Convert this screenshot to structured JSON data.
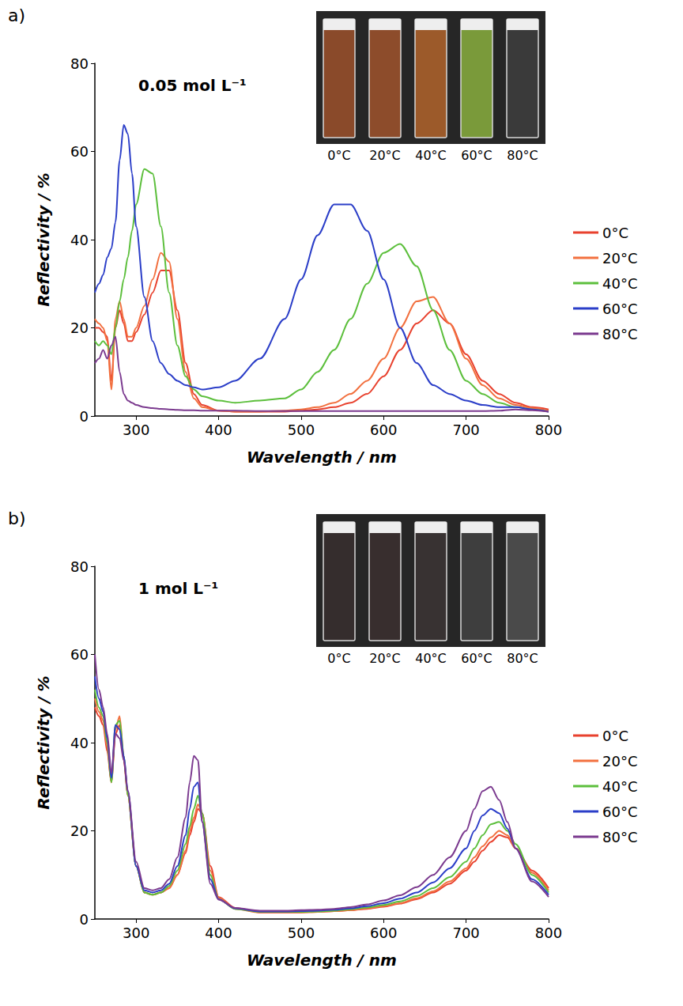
{
  "chart_data": [
    {
      "type": "line",
      "panel_label": "a)",
      "annotation": "0.05 mol L⁻¹",
      "inset_labels": [
        "0°C",
        "20°C",
        "40°C",
        "60°C",
        "80°C"
      ],
      "x_label": "Wavelength / nm",
      "y_label": "Reflectivity / %",
      "x": [
        250,
        255,
        260,
        265,
        270,
        275,
        280,
        285,
        290,
        295,
        300,
        310,
        320,
        330,
        340,
        350,
        360,
        370,
        380,
        400,
        420,
        450,
        480,
        500,
        520,
        540,
        560,
        580,
        600,
        620,
        640,
        660,
        680,
        700,
        720,
        740,
        760,
        780,
        800
      ],
      "series": [
        {
          "name": "0°C",
          "color": "#e8412e",
          "values": [
            20,
            20,
            19,
            18,
            8,
            20,
            24,
            21,
            17,
            17,
            19,
            23,
            28,
            33,
            33,
            24,
            12,
            5,
            2.5,
            1.2,
            1,
            1,
            1,
            1.2,
            1.5,
            2,
            3,
            5,
            9,
            15,
            21,
            24,
            21,
            14,
            8,
            5,
            3,
            2,
            1.5
          ]
        },
        {
          "name": "20°C",
          "color": "#f2703f",
          "values": [
            22,
            21,
            20,
            17,
            6,
            22,
            26,
            22,
            18,
            18,
            20,
            25,
            31,
            37,
            35,
            22,
            10,
            4,
            2,
            1.2,
            1,
            1,
            1.2,
            1.5,
            2,
            3,
            5,
            8,
            13,
            20,
            26,
            27,
            21,
            13,
            7,
            4,
            2.5,
            1.8,
            1.2
          ]
        },
        {
          "name": "40°C",
          "color": "#5cbf3c",
          "values": [
            17,
            16,
            17,
            16,
            14,
            20,
            26,
            31,
            36,
            42,
            48,
            56,
            55,
            43,
            28,
            16,
            9,
            6,
            4.5,
            3.5,
            3,
            3.5,
            4,
            6,
            10,
            15,
            22,
            30,
            37,
            39,
            34,
            24,
            15,
            8,
            5,
            3,
            2,
            1.5,
            1
          ]
        },
        {
          "name": "60°C",
          "color": "#2b3ec8",
          "values": [
            28,
            30,
            32,
            36,
            38,
            44,
            58,
            66,
            64,
            55,
            43,
            27,
            17,
            12,
            9.5,
            8,
            7,
            6.5,
            6,
            6.5,
            8,
            13,
            22,
            31,
            41,
            48,
            48,
            42,
            31,
            20,
            12,
            7,
            5,
            3.5,
            2.5,
            2,
            2,
            1.5,
            1
          ]
        },
        {
          "name": "80°C",
          "color": "#7b3a8f",
          "values": [
            12,
            13,
            15,
            13,
            16,
            18,
            10,
            5,
            3.5,
            3,
            2.5,
            2,
            1.8,
            1.6,
            1.5,
            1.4,
            1.3,
            1.3,
            1.2,
            1.2,
            1.2,
            1.1,
            1.1,
            1.1,
            1.1,
            1.1,
            1.1,
            1.1,
            1.1,
            1.1,
            1.1,
            1.1,
            1.1,
            1.1,
            1.1,
            1.2,
            1.5,
            1.3,
            1
          ]
        }
      ],
      "xlim": [
        250,
        800
      ],
      "xticks": [
        300,
        400,
        500,
        600,
        700,
        800
      ],
      "ylim": [
        0,
        80
      ],
      "yticks": [
        0,
        20,
        40,
        60,
        80
      ],
      "legend": "right",
      "grid": false
    },
    {
      "type": "line",
      "panel_label": "b)",
      "annotation": "1 mol L⁻¹",
      "inset_labels": [
        "0°C",
        "20°C",
        "40°C",
        "60°C",
        "80°C"
      ],
      "x_label": "Wavelength / nm",
      "y_label": "Reflectivity / %",
      "x": [
        250,
        255,
        260,
        265,
        270,
        275,
        280,
        285,
        290,
        300,
        310,
        320,
        330,
        340,
        350,
        360,
        365,
        370,
        375,
        380,
        390,
        400,
        420,
        450,
        480,
        500,
        520,
        540,
        560,
        580,
        600,
        620,
        640,
        660,
        680,
        700,
        710,
        720,
        730,
        740,
        750,
        760,
        780,
        800
      ],
      "series": [
        {
          "name": "0°C",
          "color": "#e8412e",
          "values": [
            48,
            46,
            44,
            38,
            31,
            42,
            44,
            36,
            28,
            12,
            6,
            5.5,
            6,
            7,
            10,
            15,
            19,
            22,
            25,
            24,
            12,
            5,
            2.5,
            1.5,
            1.5,
            1.5,
            1.6,
            1.8,
            2,
            2.3,
            2.8,
            3.5,
            4.5,
            6,
            8,
            11,
            13,
            15.5,
            17.5,
            19,
            18.5,
            16,
            11,
            7
          ]
        },
        {
          "name": "20°C",
          "color": "#f2703f",
          "values": [
            50,
            47,
            45,
            39,
            31,
            43,
            46,
            37,
            28,
            12,
            6,
            5.5,
            6,
            7,
            10,
            15.5,
            20,
            23,
            26,
            24,
            11,
            4.8,
            2.3,
            1.5,
            1.5,
            1.5,
            1.6,
            1.8,
            2,
            2.4,
            2.9,
            3.6,
            4.7,
            6.3,
            8.5,
            11.5,
            14,
            16.5,
            18.5,
            20,
            19,
            16,
            10.5,
            6.5
          ]
        },
        {
          "name": "40°C",
          "color": "#5cbf3c",
          "values": [
            52,
            48,
            46,
            40,
            31,
            44,
            45,
            37,
            28,
            12,
            6,
            5.5,
            6,
            7.5,
            11,
            17,
            21,
            25,
            28,
            24,
            10,
            4.5,
            2.3,
            1.6,
            1.6,
            1.6,
            1.7,
            1.9,
            2.2,
            2.6,
            3.2,
            4,
            5.2,
            7,
            9.5,
            13,
            16,
            19,
            21.5,
            22,
            20,
            17,
            10,
            6
          ]
        },
        {
          "name": "60°C",
          "color": "#2b3ec8",
          "values": [
            55,
            50,
            47,
            41,
            32,
            44,
            43,
            37,
            29,
            12,
            6.5,
            6,
            6.5,
            8,
            12,
            19,
            25,
            30,
            31,
            22,
            9,
            4.5,
            2.4,
            1.7,
            1.7,
            1.8,
            1.9,
            2.1,
            2.4,
            2.9,
            3.6,
            4.6,
            6,
            8.3,
            11.5,
            16,
            20,
            23.5,
            25,
            24,
            20.5,
            16,
            9,
            5.5
          ]
        },
        {
          "name": "80°C",
          "color": "#7b3a8f",
          "values": [
            60,
            52,
            48,
            42,
            33,
            42,
            41,
            36,
            29,
            13,
            7,
            6.5,
            7,
            9,
            14,
            23,
            31,
            37,
            36,
            22,
            8,
            4.4,
            2.5,
            1.9,
            1.9,
            2,
            2.1,
            2.3,
            2.7,
            3.3,
            4.2,
            5.4,
            7.2,
            10,
            14,
            20,
            25,
            29,
            30,
            27,
            22,
            16,
            8.5,
            5
          ]
        }
      ],
      "xlim": [
        250,
        800
      ],
      "xticks": [
        300,
        400,
        500,
        600,
        700,
        800
      ],
      "ylim": [
        0,
        80
      ],
      "yticks": [
        0,
        20,
        40,
        60,
        80
      ],
      "legend": "right",
      "grid": false
    }
  ]
}
